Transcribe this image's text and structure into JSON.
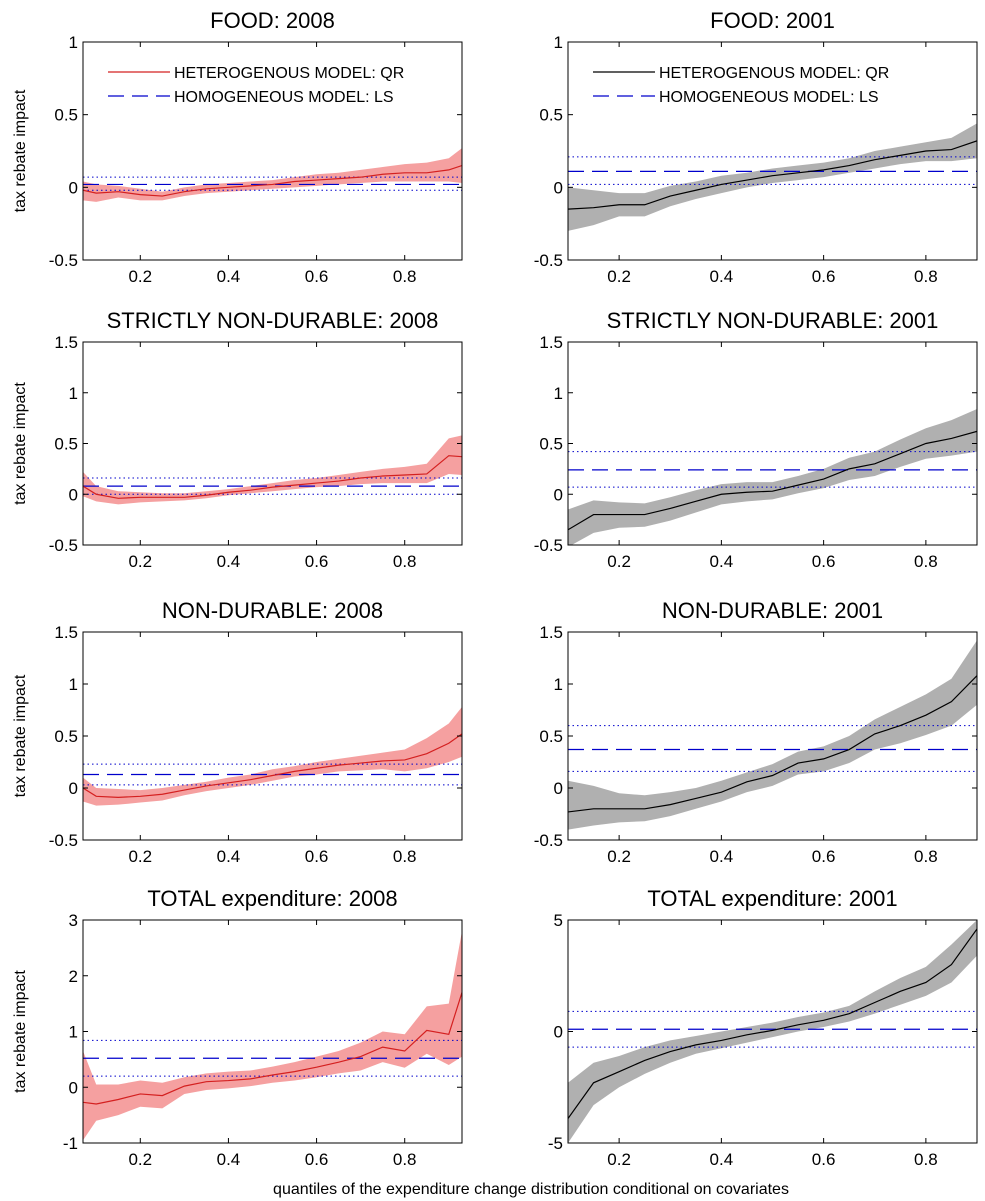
{
  "figure": {
    "xlabel": "quantiles of the expenditure change distribution conditional on covariates",
    "colors": {
      "band_2008": "#f5a0a0",
      "line_2008": "#d42020",
      "band_2001": "#b0b0b0",
      "line_2001": "#000000",
      "ls_line": "#0000cc"
    }
  },
  "chart_data": [
    {
      "type": "line",
      "title": "FOOD: 2008",
      "ylabel": "tax rebate impact",
      "xlim": [
        0.07,
        0.93
      ],
      "ylim": [
        -0.5,
        1
      ],
      "yticks": [
        "-0.5",
        "0",
        "0.5",
        "1"
      ],
      "xticks": [
        "0.2",
        "0.4",
        "0.6",
        "0.8"
      ],
      "legend": [
        "HETEROGENOUS MODEL: QR",
        "HOMOGENEOUS MODEL: LS"
      ],
      "x": [
        0.07,
        0.1,
        0.15,
        0.2,
        0.25,
        0.3,
        0.35,
        0.4,
        0.45,
        0.5,
        0.55,
        0.6,
        0.65,
        0.7,
        0.75,
        0.8,
        0.85,
        0.9,
        0.93
      ],
      "qr": [
        -0.02,
        -0.04,
        -0.03,
        -0.05,
        -0.06,
        -0.03,
        -0.01,
        0.0,
        0.01,
        0.02,
        0.04,
        0.05,
        0.06,
        0.07,
        0.09,
        0.1,
        0.1,
        0.12,
        0.15
      ],
      "qr_lower": [
        -0.09,
        -0.1,
        -0.07,
        -0.09,
        -0.09,
        -0.06,
        -0.04,
        -0.03,
        -0.02,
        -0.01,
        0.0,
        0.01,
        0.02,
        0.03,
        0.04,
        0.04,
        0.04,
        0.04,
        0.03
      ],
      "qr_upper": [
        0.04,
        0.02,
        0.01,
        -0.01,
        -0.03,
        0.0,
        0.02,
        0.03,
        0.04,
        0.05,
        0.07,
        0.09,
        0.1,
        0.12,
        0.14,
        0.16,
        0.17,
        0.2,
        0.27
      ],
      "ls": 0.02,
      "ls_lower": -0.02,
      "ls_upper": 0.07
    },
    {
      "type": "line",
      "title": "FOOD: 2001",
      "ylabel": "",
      "xlim": [
        0.1,
        0.9
      ],
      "ylim": [
        -0.5,
        1
      ],
      "yticks": [
        "-0.5",
        "0",
        "0.5",
        "1"
      ],
      "xticks": [
        "0.2",
        "0.4",
        "0.6",
        "0.8"
      ],
      "legend": [
        "HETEROGENOUS MODEL: QR",
        "HOMOGENEOUS MODEL: LS"
      ],
      "x": [
        0.1,
        0.15,
        0.2,
        0.25,
        0.3,
        0.35,
        0.4,
        0.45,
        0.5,
        0.55,
        0.6,
        0.65,
        0.7,
        0.75,
        0.8,
        0.85,
        0.9
      ],
      "qr": [
        -0.15,
        -0.14,
        -0.12,
        -0.12,
        -0.06,
        -0.02,
        0.02,
        0.05,
        0.08,
        0.1,
        0.12,
        0.15,
        0.19,
        0.22,
        0.25,
        0.26,
        0.32
      ],
      "qr_lower": [
        -0.3,
        -0.26,
        -0.2,
        -0.2,
        -0.13,
        -0.08,
        -0.04,
        0.0,
        0.03,
        0.05,
        0.07,
        0.1,
        0.13,
        0.16,
        0.18,
        0.18,
        0.2
      ],
      "qr_upper": [
        0.0,
        -0.02,
        -0.04,
        -0.04,
        0.01,
        0.04,
        0.08,
        0.1,
        0.13,
        0.15,
        0.17,
        0.2,
        0.25,
        0.28,
        0.31,
        0.34,
        0.44
      ],
      "ls": 0.11,
      "ls_lower": 0.02,
      "ls_upper": 0.21
    },
    {
      "type": "line",
      "title": "STRICTLY NON-DURABLE: 2008",
      "ylabel": "tax rebate impact",
      "xlim": [
        0.07,
        0.93
      ],
      "ylim": [
        -0.5,
        1.5
      ],
      "yticks": [
        "-0.5",
        "0",
        "0.5",
        "1",
        "1.5"
      ],
      "xticks": [
        "0.2",
        "0.4",
        "0.6",
        "0.8"
      ],
      "x": [
        0.07,
        0.1,
        0.15,
        0.2,
        0.25,
        0.3,
        0.35,
        0.4,
        0.45,
        0.5,
        0.55,
        0.6,
        0.65,
        0.7,
        0.75,
        0.8,
        0.85,
        0.9,
        0.93
      ],
      "qr": [
        0.08,
        0.0,
        -0.04,
        -0.03,
        -0.03,
        -0.03,
        -0.01,
        0.02,
        0.04,
        0.07,
        0.09,
        0.11,
        0.13,
        0.16,
        0.18,
        0.19,
        0.2,
        0.38,
        0.37
      ],
      "qr_lower": [
        -0.02,
        -0.07,
        -0.1,
        -0.08,
        -0.07,
        -0.06,
        -0.04,
        -0.01,
        0.01,
        0.03,
        0.05,
        0.07,
        0.08,
        0.1,
        0.11,
        0.11,
        0.11,
        0.2,
        0.19
      ],
      "qr_upper": [
        0.22,
        0.08,
        0.03,
        0.02,
        0.01,
        0.01,
        0.03,
        0.05,
        0.08,
        0.11,
        0.14,
        0.16,
        0.19,
        0.22,
        0.25,
        0.27,
        0.3,
        0.55,
        0.58
      ],
      "ls": 0.08,
      "ls_lower": 0.0,
      "ls_upper": 0.16
    },
    {
      "type": "line",
      "title": "STRICTLY NON-DURABLE: 2001",
      "ylabel": "",
      "xlim": [
        0.1,
        0.9
      ],
      "ylim": [
        -0.5,
        1.5
      ],
      "yticks": [
        "-0.5",
        "0",
        "0.5",
        "1",
        "1.5"
      ],
      "xticks": [
        "0.2",
        "0.4",
        "0.6",
        "0.8"
      ],
      "x": [
        0.1,
        0.15,
        0.2,
        0.25,
        0.3,
        0.35,
        0.4,
        0.45,
        0.5,
        0.55,
        0.6,
        0.65,
        0.7,
        0.75,
        0.8,
        0.85,
        0.9
      ],
      "qr": [
        -0.35,
        -0.2,
        -0.2,
        -0.2,
        -0.14,
        -0.07,
        0.0,
        0.02,
        0.03,
        0.09,
        0.15,
        0.25,
        0.3,
        0.4,
        0.5,
        0.55,
        0.62
      ],
      "qr_lower": [
        -0.52,
        -0.38,
        -0.33,
        -0.32,
        -0.26,
        -0.18,
        -0.1,
        -0.07,
        -0.05,
        0.01,
        0.06,
        0.14,
        0.18,
        0.27,
        0.35,
        0.38,
        0.42
      ],
      "qr_upper": [
        -0.15,
        -0.06,
        -0.08,
        -0.09,
        -0.03,
        0.04,
        0.1,
        0.12,
        0.12,
        0.18,
        0.25,
        0.36,
        0.42,
        0.54,
        0.65,
        0.73,
        0.84
      ],
      "ls": 0.24,
      "ls_lower": 0.07,
      "ls_upper": 0.42
    },
    {
      "type": "line",
      "title": "NON-DURABLE: 2008",
      "ylabel": "tax rebate impact",
      "xlim": [
        0.07,
        0.93
      ],
      "ylim": [
        -0.5,
        1.5
      ],
      "yticks": [
        "-0.5",
        "0",
        "0.5",
        "1",
        "1.5"
      ],
      "xticks": [
        "0.2",
        "0.4",
        "0.6",
        "0.8"
      ],
      "x": [
        0.07,
        0.1,
        0.15,
        0.2,
        0.25,
        0.3,
        0.35,
        0.4,
        0.45,
        0.5,
        0.55,
        0.6,
        0.65,
        0.7,
        0.75,
        0.8,
        0.85,
        0.9,
        0.93
      ],
      "qr": [
        0.0,
        -0.08,
        -0.09,
        -0.08,
        -0.06,
        -0.02,
        0.02,
        0.05,
        0.08,
        0.12,
        0.16,
        0.19,
        0.22,
        0.24,
        0.26,
        0.27,
        0.33,
        0.43,
        0.52
      ],
      "qr_lower": [
        -0.13,
        -0.17,
        -0.16,
        -0.14,
        -0.12,
        -0.07,
        -0.03,
        0.0,
        0.03,
        0.07,
        0.11,
        0.13,
        0.16,
        0.17,
        0.18,
        0.16,
        0.19,
        0.25,
        0.3
      ],
      "qr_upper": [
        0.1,
        0.0,
        -0.01,
        -0.02,
        0.0,
        0.03,
        0.06,
        0.1,
        0.13,
        0.18,
        0.21,
        0.25,
        0.28,
        0.31,
        0.34,
        0.37,
        0.48,
        0.62,
        0.78
      ],
      "ls": 0.13,
      "ls_lower": 0.03,
      "ls_upper": 0.23
    },
    {
      "type": "line",
      "title": "NON-DURABLE: 2001",
      "ylabel": "",
      "xlim": [
        0.1,
        0.9
      ],
      "ylim": [
        -0.5,
        1.5
      ],
      "yticks": [
        "-0.5",
        "0",
        "0.5",
        "1",
        "1.5"
      ],
      "xticks": [
        "0.2",
        "0.4",
        "0.6",
        "0.8"
      ],
      "x": [
        0.1,
        0.15,
        0.2,
        0.25,
        0.3,
        0.35,
        0.4,
        0.45,
        0.5,
        0.55,
        0.6,
        0.65,
        0.7,
        0.75,
        0.8,
        0.85,
        0.9
      ],
      "qr": [
        -0.23,
        -0.2,
        -0.2,
        -0.2,
        -0.16,
        -0.1,
        -0.04,
        0.06,
        0.12,
        0.24,
        0.28,
        0.37,
        0.52,
        0.6,
        0.7,
        0.83,
        1.08
      ],
      "qr_lower": [
        -0.4,
        -0.36,
        -0.33,
        -0.32,
        -0.27,
        -0.2,
        -0.13,
        -0.04,
        0.02,
        0.13,
        0.16,
        0.24,
        0.37,
        0.43,
        0.51,
        0.6,
        0.8
      ],
      "qr_upper": [
        0.07,
        0.02,
        -0.05,
        -0.07,
        -0.04,
        0.0,
        0.07,
        0.15,
        0.23,
        0.35,
        0.4,
        0.5,
        0.66,
        0.78,
        0.9,
        1.05,
        1.42
      ],
      "ls": 0.37,
      "ls_lower": 0.16,
      "ls_upper": 0.6
    },
    {
      "type": "line",
      "title": "TOTAL expenditure: 2008",
      "ylabel": "tax rebate impact",
      "xlim": [
        0.07,
        0.93
      ],
      "ylim": [
        -1,
        3
      ],
      "yticks": [
        "-1",
        "0",
        "1",
        "2",
        "3"
      ],
      "xticks": [
        "0.2",
        "0.4",
        "0.6",
        "0.8"
      ],
      "x": [
        0.07,
        0.1,
        0.15,
        0.2,
        0.25,
        0.3,
        0.35,
        0.4,
        0.45,
        0.5,
        0.55,
        0.6,
        0.65,
        0.7,
        0.75,
        0.8,
        0.85,
        0.9,
        0.93
      ],
      "qr": [
        -0.27,
        -0.3,
        -0.22,
        -0.12,
        -0.15,
        0.02,
        0.1,
        0.12,
        0.15,
        0.22,
        0.28,
        0.36,
        0.45,
        0.55,
        0.72,
        0.65,
        1.02,
        0.95,
        1.7
      ],
      "qr_lower": [
        -0.95,
        -0.6,
        -0.5,
        -0.35,
        -0.38,
        -0.12,
        -0.05,
        -0.02,
        0.02,
        0.08,
        0.12,
        0.18,
        0.25,
        0.3,
        0.45,
        0.35,
        0.6,
        0.4,
        0.55
      ],
      "qr_upper": [
        0.65,
        0.05,
        0.05,
        0.12,
        0.08,
        0.18,
        0.25,
        0.28,
        0.3,
        0.37,
        0.45,
        0.55,
        0.65,
        0.8,
        1.0,
        0.95,
        1.45,
        1.5,
        2.8
      ],
      "ls": 0.52,
      "ls_lower": 0.2,
      "ls_upper": 0.84
    },
    {
      "type": "line",
      "title": "TOTAL expenditure: 2001",
      "ylabel": "",
      "xlim": [
        0.1,
        0.9
      ],
      "ylim": [
        -5,
        5
      ],
      "yticks": [
        "-5",
        "0",
        "5"
      ],
      "xticks": [
        "0.2",
        "0.4",
        "0.6",
        "0.8"
      ],
      "x": [
        0.1,
        0.15,
        0.2,
        0.25,
        0.3,
        0.35,
        0.4,
        0.45,
        0.5,
        0.55,
        0.6,
        0.65,
        0.7,
        0.75,
        0.8,
        0.85,
        0.9
      ],
      "qr": [
        -3.9,
        -2.3,
        -1.8,
        -1.3,
        -0.9,
        -0.6,
        -0.4,
        -0.15,
        0.05,
        0.3,
        0.5,
        0.8,
        1.3,
        1.8,
        2.2,
        3.0,
        4.6
      ],
      "qr_lower": [
        -5.0,
        -3.3,
        -2.5,
        -1.9,
        -1.4,
        -1.0,
        -0.75,
        -0.5,
        -0.25,
        0.0,
        0.2,
        0.45,
        0.8,
        1.2,
        1.6,
        2.2,
        3.4
      ],
      "qr_upper": [
        -2.3,
        -1.4,
        -1.1,
        -0.7,
        -0.4,
        -0.2,
        0.0,
        0.2,
        0.4,
        0.65,
        0.85,
        1.15,
        1.8,
        2.4,
        2.9,
        3.9,
        5.0
      ],
      "ls": 0.1,
      "ls_lower": -0.7,
      "ls_upper": 0.9
    }
  ]
}
